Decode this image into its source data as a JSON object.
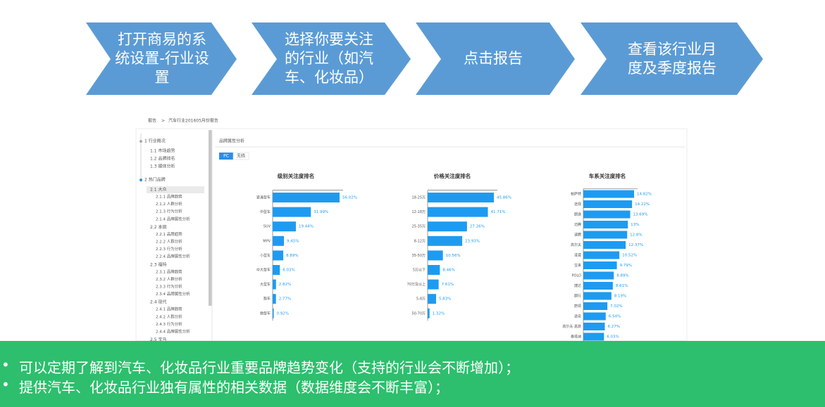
{
  "steps": [
    "打开商易的系统设置-行业设置",
    "选择你要关注的行业（如汽车、化妆品）",
    "点击报告",
    "查看该行业月度及季度报告"
  ],
  "breadcrumb": {
    "root": "报告",
    "separator": ">",
    "current": "汽车行业201605月份报告"
  },
  "sidebar": [
    {
      "title": "1 行业概况",
      "items": [
        {
          "title": "1.1 市场趋势"
        },
        {
          "title": "1.2 品牌排名"
        },
        {
          "title": "1.3 媒体分析"
        }
      ]
    },
    {
      "title": "2 热门品牌",
      "items": [
        {
          "title": "2.1 大众",
          "items": [
            "2.1.1 品牌趋势",
            "2.1.2 人群分析",
            "2.1.3 行为分析",
            "2.1.4 品牌属性分析"
          ]
        },
        {
          "title": "2.2 本田",
          "items": [
            "2.2.1 品牌趋势",
            "2.2.2 人群分析",
            "2.2.3 行为分析",
            "2.2.4 品牌属性分析"
          ]
        },
        {
          "title": "2.3 福特",
          "items": [
            "2.3.1 品牌趋势",
            "2.3.2 人群分析",
            "2.3.3 行为分析",
            "2.3.4 品牌属性分析"
          ]
        },
        {
          "title": "2.4 现代",
          "items": [
            "2.4.1 品牌趋势",
            "2.4.2 人群分析",
            "2.4.3 行为分析",
            "2.4.4 品牌属性分析"
          ]
        },
        {
          "title": "2.5 宝马"
        }
      ]
    }
  ],
  "panel": {
    "title": "品牌属性分析",
    "tabs": [
      "PC",
      "无线"
    ]
  },
  "chart_data": [
    {
      "type": "bar",
      "orientation": "horizontal",
      "title": "级别关注度排名",
      "color": "#1e9bf0",
      "categories": [
        "紧凑型车",
        "中型车",
        "SUV",
        "MPV",
        "小型车",
        "中大型车",
        "大型车",
        "跑车",
        "微型车"
      ],
      "values": [
        56.02,
        31.99,
        19.44,
        9.45,
        8.89,
        6.03,
        2.82,
        2.77,
        0.92
      ],
      "value_labels": [
        "56.02%",
        "31.99%",
        "19.44%",
        "9.45%",
        "8.89%",
        "6.03%",
        "2.82%",
        "2.77%",
        "0.92%"
      ]
    },
    {
      "type": "bar",
      "orientation": "horizontal",
      "title": "价格关注度排名",
      "color": "#1e9bf0",
      "categories": [
        "18-25万",
        "12-18万",
        "25-35万",
        "8-12万",
        "35-50万",
        "5万以下",
        "70万及以上",
        "5-8万",
        "50-70万"
      ],
      "values": [
        45.86,
        41.71,
        27.26,
        23.93,
        10.56,
        8.46,
        7.61,
        5.83,
        1.32
      ],
      "value_labels": [
        "45.86%",
        "41.71%",
        "27.26%",
        "23.93%",
        "10.56%",
        "8.46%",
        "7.61%",
        "5.83%",
        "1.32%"
      ]
    },
    {
      "type": "bar",
      "orientation": "horizontal",
      "title": "车系关注度排名",
      "color": "#1e9bf0",
      "categories": [
        "帕萨特",
        "途观",
        "朗逸",
        "迈腾",
        "速腾",
        "高尔夫",
        "凌渡",
        "宝来",
        "POLO",
        "捷达",
        "朗行",
        "蔚领",
        "途安",
        "高尔夫·嘉旅",
        "桑塔纳"
      ],
      "values": [
        14.82,
        14.22,
        13.69,
        13,
        12.8,
        12.37,
        10.52,
        9.79,
        8.89,
        8.61,
        8.19,
        7.02,
        6.54,
        6.27,
        6.03
      ],
      "value_labels": [
        "14.82%",
        "14.22%",
        "13.69%",
        "13%",
        "12.8%",
        "12.37%",
        "10.52%",
        "9.79%",
        "8.89%",
        "8.61%",
        "8.19%",
        "7.02%",
        "6.54%",
        "6.27%",
        "6.03%"
      ]
    }
  ],
  "bullets": [
    "可以定期了解到汽车、化妆品行业重要品牌趋势变化（支持的行业会不断增加）；",
    "提供汽车、化妆品行业独有属性的相关数据（数据维度会不断丰富）；"
  ]
}
